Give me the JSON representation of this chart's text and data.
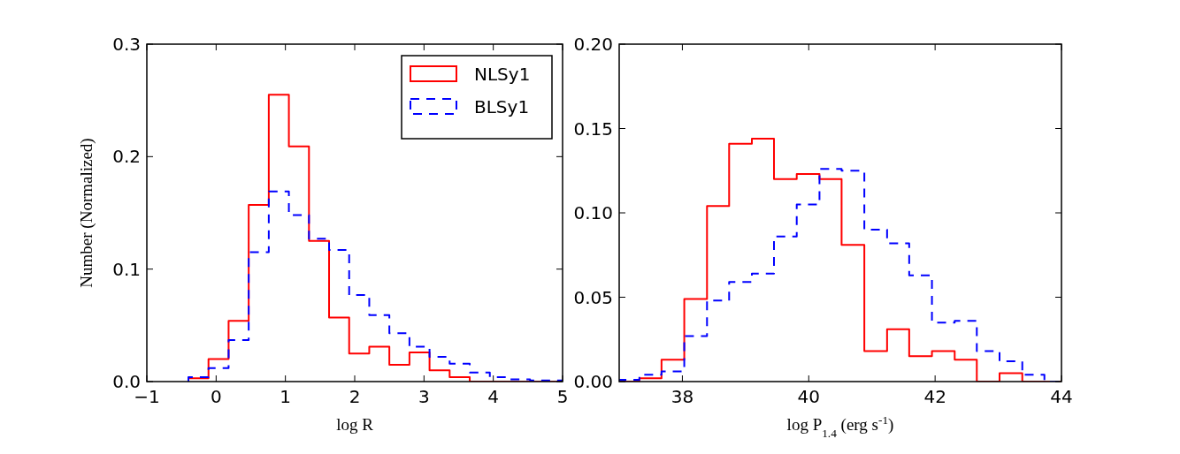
{
  "chart_data": [
    {
      "type": "histogram",
      "xlabel": "log R",
      "ylabel": "Number (Normalized)",
      "xlim": [
        -1,
        5
      ],
      "ylim": [
        0,
        0.3
      ],
      "xticks": [
        {
          "value": -1,
          "label": "−1"
        },
        0,
        1,
        2,
        3,
        4,
        5
      ],
      "yticks": [
        {
          "value": 0,
          "label": "0.0"
        },
        0.1,
        0.2,
        0.3
      ],
      "bins": [
        -0.4,
        -0.11,
        0.18,
        0.47,
        0.76,
        1.05,
        1.34,
        1.63,
        1.92,
        2.21,
        2.5,
        2.79,
        3.08,
        3.37,
        3.66,
        3.95,
        4.24,
        4.53,
        4.82,
        5.0
      ],
      "series": [
        {
          "name": "NLSy1",
          "color": "#ff0000",
          "line_style": "solid",
          "values": [
            0.003,
            0.02,
            0.054,
            0.157,
            0.255,
            0.209,
            0.125,
            0.057,
            0.025,
            0.031,
            0.015,
            0.026,
            0.01,
            0.004,
            0,
            0,
            0,
            0,
            0
          ]
        },
        {
          "name": "BLSy1",
          "color": "#0000ff",
          "line_style": "dashed",
          "values": [
            0.004,
            0.012,
            0.037,
            0.115,
            0.169,
            0.148,
            0.127,
            0.117,
            0.077,
            0.059,
            0.043,
            0.031,
            0.022,
            0.016,
            0.008,
            0.004,
            0.002,
            0.001,
            0.001
          ]
        }
      ],
      "legend": "top right"
    },
    {
      "type": "histogram",
      "xlabel": "log P$_{1.4}$ (erg s$^{-1}$)",
      "xlim": [
        37,
        44
      ],
      "ylim": [
        0,
        0.2
      ],
      "xticks": [
        38,
        40,
        42,
        44
      ],
      "yticks": [
        {
          "value": 0,
          "label": "0.00"
        },
        0.05,
        {
          "value": 0.1,
          "label": "0.10"
        },
        0.15,
        {
          "value": 0.2,
          "label": "0.20"
        }
      ],
      "bins": [
        37.0,
        37.32,
        37.67,
        38.03,
        38.39,
        38.74,
        39.1,
        39.45,
        39.81,
        40.17,
        40.52,
        40.88,
        41.24,
        41.59,
        41.95,
        42.31,
        42.66,
        43.02,
        43.38,
        43.73,
        44.0
      ],
      "series": [
        {
          "color": "#ff0000",
          "line_style": "solid",
          "values": [
            0,
            0.002,
            0.013,
            0.049,
            0.104,
            0.141,
            0.144,
            0.12,
            0.123,
            0.12,
            0.081,
            0.018,
            0.031,
            0.015,
            0.018,
            0.013,
            0,
            0.005,
            0,
            0
          ]
        },
        {
          "color": "#0000ff",
          "line_style": "dashed",
          "values": [
            0.001,
            0.004,
            0.006,
            0.027,
            0.048,
            0.059,
            0.064,
            0.086,
            0.105,
            0.126,
            0.125,
            0.09,
            0.082,
            0.063,
            0.035,
            0.036,
            0.018,
            0.012,
            0.004,
            0
          ]
        }
      ]
    }
  ]
}
